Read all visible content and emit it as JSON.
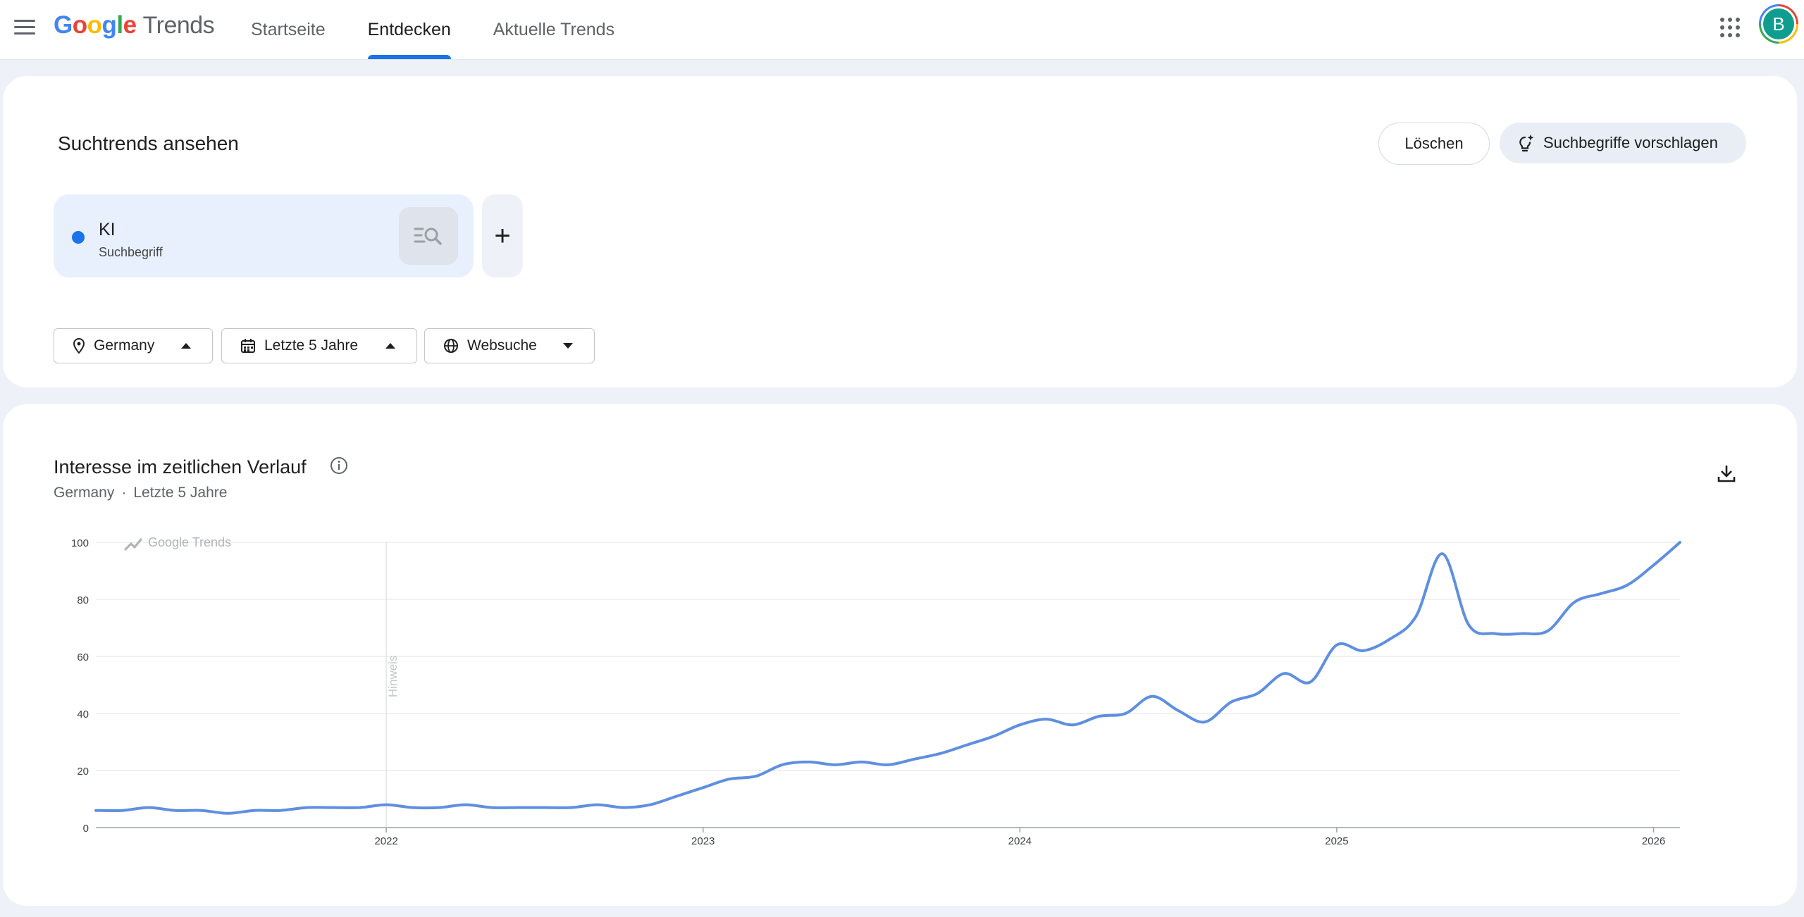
{
  "header": {
    "logo_google": "Google",
    "logo_trends": "Trends",
    "tabs": [
      {
        "label": "Startseite",
        "active": false
      },
      {
        "label": "Entdecken",
        "active": true
      },
      {
        "label": "Aktuelle Trends",
        "active": false
      }
    ],
    "avatar_letter": "B",
    "avatar_color": "#0f9d8f"
  },
  "explore": {
    "title": "Suchtrends ansehen",
    "clear_label": "Löschen",
    "suggest_label": "Suchbegriffe vorschlagen",
    "term": {
      "name": "KI",
      "type": "Suchbegriff",
      "color": "#1a73e8"
    },
    "add_label": "+",
    "filters": {
      "geo": "Germany",
      "time": "Letzte 5 Jahre",
      "property": "Websuche"
    }
  },
  "chart_card": {
    "title": "Interesse im zeitlichen Verlauf",
    "subtitle_geo": "Germany",
    "subtitle_sep": "·",
    "subtitle_time": "Letzte 5 Jahre",
    "watermark": "Google Trends",
    "note_label": "Hinweis"
  },
  "chart_data": {
    "type": "line",
    "title": "Interesse im zeitlichen Verlauf",
    "ylim": [
      0,
      100
    ],
    "yticks": [
      0,
      20,
      40,
      60,
      80,
      100
    ],
    "xlim": [
      "2021-02",
      "2026-02"
    ],
    "xticks": [
      "2022",
      "2023",
      "2024",
      "2025",
      "2026"
    ],
    "grid": true,
    "line_color": "#5f8fe0",
    "note_date": "2022-01",
    "series": [
      {
        "name": "KI",
        "points": [
          [
            "2021-02",
            6
          ],
          [
            "2021-03",
            6
          ],
          [
            "2021-04",
            7
          ],
          [
            "2021-05",
            6
          ],
          [
            "2021-06",
            6
          ],
          [
            "2021-07",
            5
          ],
          [
            "2021-08",
            6
          ],
          [
            "2021-09",
            6
          ],
          [
            "2021-10",
            7
          ],
          [
            "2021-11",
            7
          ],
          [
            "2021-12",
            7
          ],
          [
            "2022-01",
            8
          ],
          [
            "2022-02",
            7
          ],
          [
            "2022-03",
            7
          ],
          [
            "2022-04",
            8
          ],
          [
            "2022-05",
            7
          ],
          [
            "2022-06",
            7
          ],
          [
            "2022-07",
            7
          ],
          [
            "2022-08",
            7
          ],
          [
            "2022-09",
            8
          ],
          [
            "2022-10",
            7
          ],
          [
            "2022-11",
            8
          ],
          [
            "2022-12",
            11
          ],
          [
            "2023-01",
            14
          ],
          [
            "2023-02",
            17
          ],
          [
            "2023-03",
            18
          ],
          [
            "2023-04",
            22
          ],
          [
            "2023-05",
            23
          ],
          [
            "2023-06",
            22
          ],
          [
            "2023-07",
            23
          ],
          [
            "2023-08",
            22
          ],
          [
            "2023-09",
            24
          ],
          [
            "2023-10",
            26
          ],
          [
            "2023-11",
            29
          ],
          [
            "2023-12",
            32
          ],
          [
            "2024-01",
            36
          ],
          [
            "2024-02",
            38
          ],
          [
            "2024-03",
            36
          ],
          [
            "2024-04",
            39
          ],
          [
            "2024-05",
            40
          ],
          [
            "2024-06",
            46
          ],
          [
            "2024-07",
            41
          ],
          [
            "2024-08",
            37
          ],
          [
            "2024-09",
            44
          ],
          [
            "2024-10",
            47
          ],
          [
            "2024-11",
            54
          ],
          [
            "2024-12",
            51
          ],
          [
            "2025-01",
            64
          ],
          [
            "2025-02",
            62
          ],
          [
            "2025-03",
            66
          ],
          [
            "2025-04",
            74
          ],
          [
            "2025-05",
            96
          ],
          [
            "2025-06",
            71
          ],
          [
            "2025-07",
            68
          ],
          [
            "2025-08",
            68
          ],
          [
            "2025-09",
            69
          ],
          [
            "2025-10",
            79
          ],
          [
            "2025-11",
            82
          ],
          [
            "2025-12",
            85
          ],
          [
            "2026-01",
            92
          ],
          [
            "2026-02",
            100
          ]
        ]
      }
    ]
  }
}
